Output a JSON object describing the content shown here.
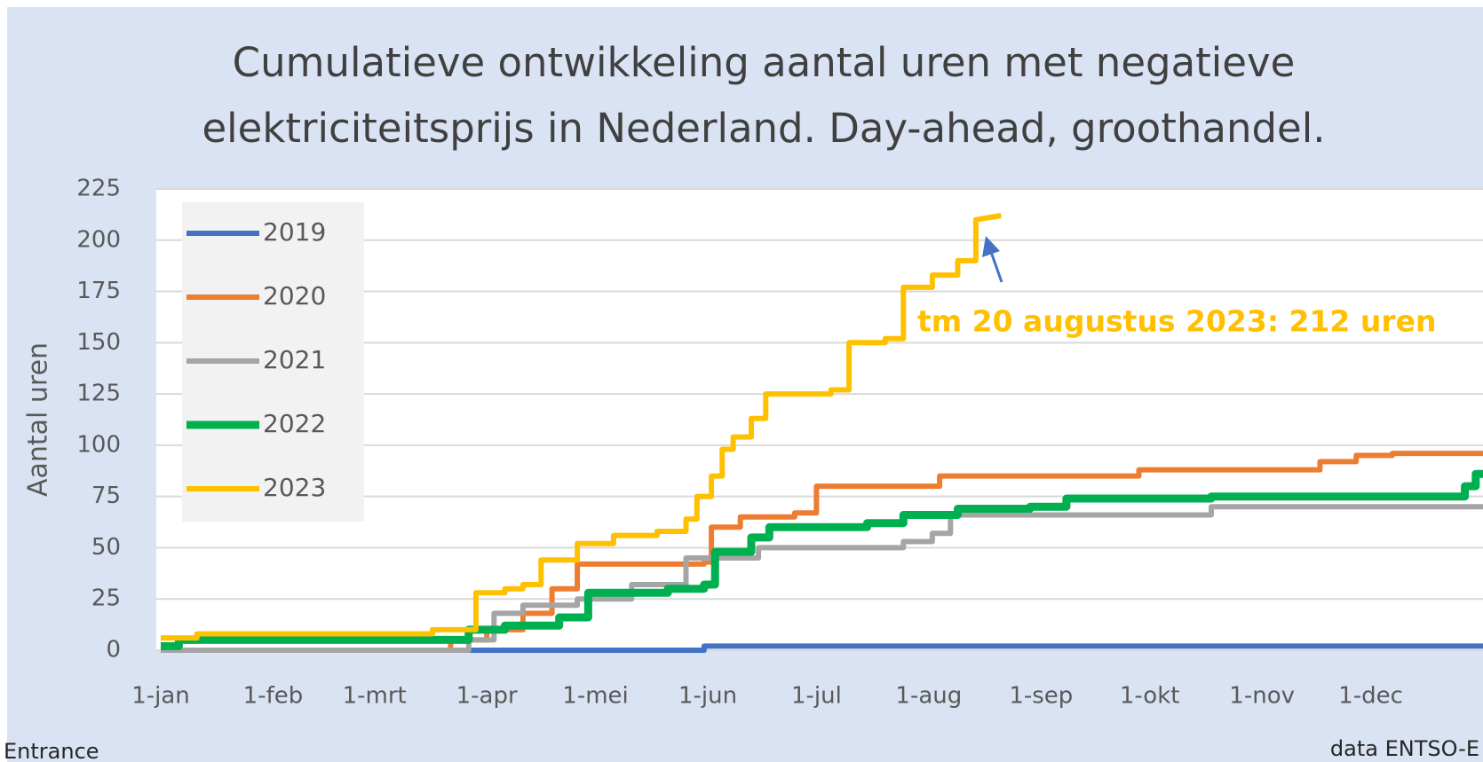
{
  "chart_data": {
    "type": "line",
    "title": "Cumulatieve ontwikkeling aantal uren met negatieve",
    "subtitle": "elektriciteitsprijs in Nederland. Day-ahead, groothandel.",
    "y_label": "Aantal uren",
    "annotation": "tm 20 augustus 2023: 212 uren",
    "annotation_color": "#ffc000",
    "source_left": "Entrance",
    "source": "data ENTSO-E",
    "xlim": [
      0,
      365
    ],
    "xticks": [
      {
        "value": 0,
        "label": "1-jan"
      },
      {
        "value": 31,
        "label": "1-feb"
      },
      {
        "value": 59,
        "label": "1-mrt"
      },
      {
        "value": 90,
        "label": "1-apr"
      },
      {
        "value": 120,
        "label": "1-mei"
      },
      {
        "value": 151,
        "label": "1-jun"
      },
      {
        "value": 181,
        "label": "1-jul"
      },
      {
        "value": 212,
        "label": "1-aug"
      },
      {
        "value": 243,
        "label": "1-sep"
      },
      {
        "value": 273,
        "label": "1-okt"
      },
      {
        "value": 304,
        "label": "1-nov"
      },
      {
        "value": 334,
        "label": "1-dec"
      }
    ],
    "ylim": [
      0,
      225
    ],
    "yticks": [
      0,
      25,
      50,
      75,
      100,
      125,
      150,
      175,
      200,
      225
    ],
    "grid": true,
    "legend": "top-left",
    "series": [
      {
        "name": "2019",
        "color": "#4472c4",
        "x": [
          0,
          150,
          150,
          365
        ],
        "values": [
          0,
          0,
          2,
          2
        ]
      },
      {
        "name": "2020",
        "color": "#ed7d31",
        "x": [
          0,
          80,
          80,
          90,
          90,
          100,
          100,
          108,
          108,
          115,
          115,
          150,
          150,
          152,
          152,
          160,
          160,
          175,
          175,
          181,
          181,
          215,
          215,
          270,
          270,
          320,
          320,
          330,
          330,
          340,
          340,
          365
        ],
        "values": [
          0,
          0,
          5,
          5,
          10,
          10,
          18,
          18,
          30,
          30,
          42,
          42,
          43,
          43,
          60,
          60,
          65,
          65,
          67,
          67,
          80,
          80,
          85,
          85,
          88,
          88,
          92,
          92,
          95,
          95,
          96,
          96
        ]
      },
      {
        "name": "2021",
        "color": "#a5a5a5",
        "x": [
          0,
          85,
          85,
          92,
          92,
          100,
          100,
          115,
          115,
          130,
          130,
          145,
          145,
          165,
          165,
          205,
          205,
          213,
          213,
          218,
          218,
          290,
          290,
          365
        ],
        "values": [
          0,
          0,
          5,
          5,
          18,
          18,
          22,
          22,
          25,
          25,
          32,
          32,
          45,
          45,
          50,
          50,
          53,
          53,
          57,
          57,
          66,
          66,
          70,
          70
        ]
      },
      {
        "name": "2022",
        "color": "#00b050",
        "x": [
          0,
          5,
          5,
          85,
          85,
          95,
          95,
          110,
          110,
          118,
          118,
          140,
          140,
          150,
          150,
          153,
          153,
          163,
          163,
          168,
          168,
          195,
          195,
          205,
          205,
          220,
          220,
          240,
          240,
          250,
          250,
          290,
          290,
          360,
          360,
          363,
          363,
          365
        ],
        "values": [
          2,
          2,
          5,
          5,
          10,
          10,
          12,
          12,
          16,
          16,
          28,
          28,
          30,
          30,
          32,
          32,
          48,
          48,
          55,
          55,
          60,
          60,
          62,
          62,
          66,
          66,
          69,
          69,
          70,
          70,
          74,
          74,
          75,
          75,
          80,
          80,
          86,
          86
        ]
      },
      {
        "name": "2023",
        "color": "#ffc000",
        "x": [
          0,
          10,
          10,
          75,
          75,
          87,
          87,
          95,
          95,
          100,
          100,
          105,
          105,
          115,
          115,
          125,
          125,
          137,
          137,
          145,
          145,
          148,
          148,
          152,
          152,
          155,
          155,
          158,
          158,
          163,
          163,
          167,
          167,
          185,
          185,
          190,
          190,
          200,
          200,
          205,
          205,
          213,
          213,
          220,
          220,
          225,
          225,
          232
        ],
        "values": [
          6,
          6,
          8,
          8,
          10,
          10,
          28,
          28,
          30,
          30,
          32,
          32,
          44,
          44,
          52,
          52,
          56,
          56,
          58,
          58,
          64,
          64,
          75,
          75,
          85,
          85,
          98,
          98,
          104,
          104,
          113,
          113,
          125,
          125,
          127,
          127,
          150,
          150,
          152,
          152,
          177,
          177,
          183,
          183,
          190,
          190,
          210,
          212
        ]
      }
    ]
  }
}
